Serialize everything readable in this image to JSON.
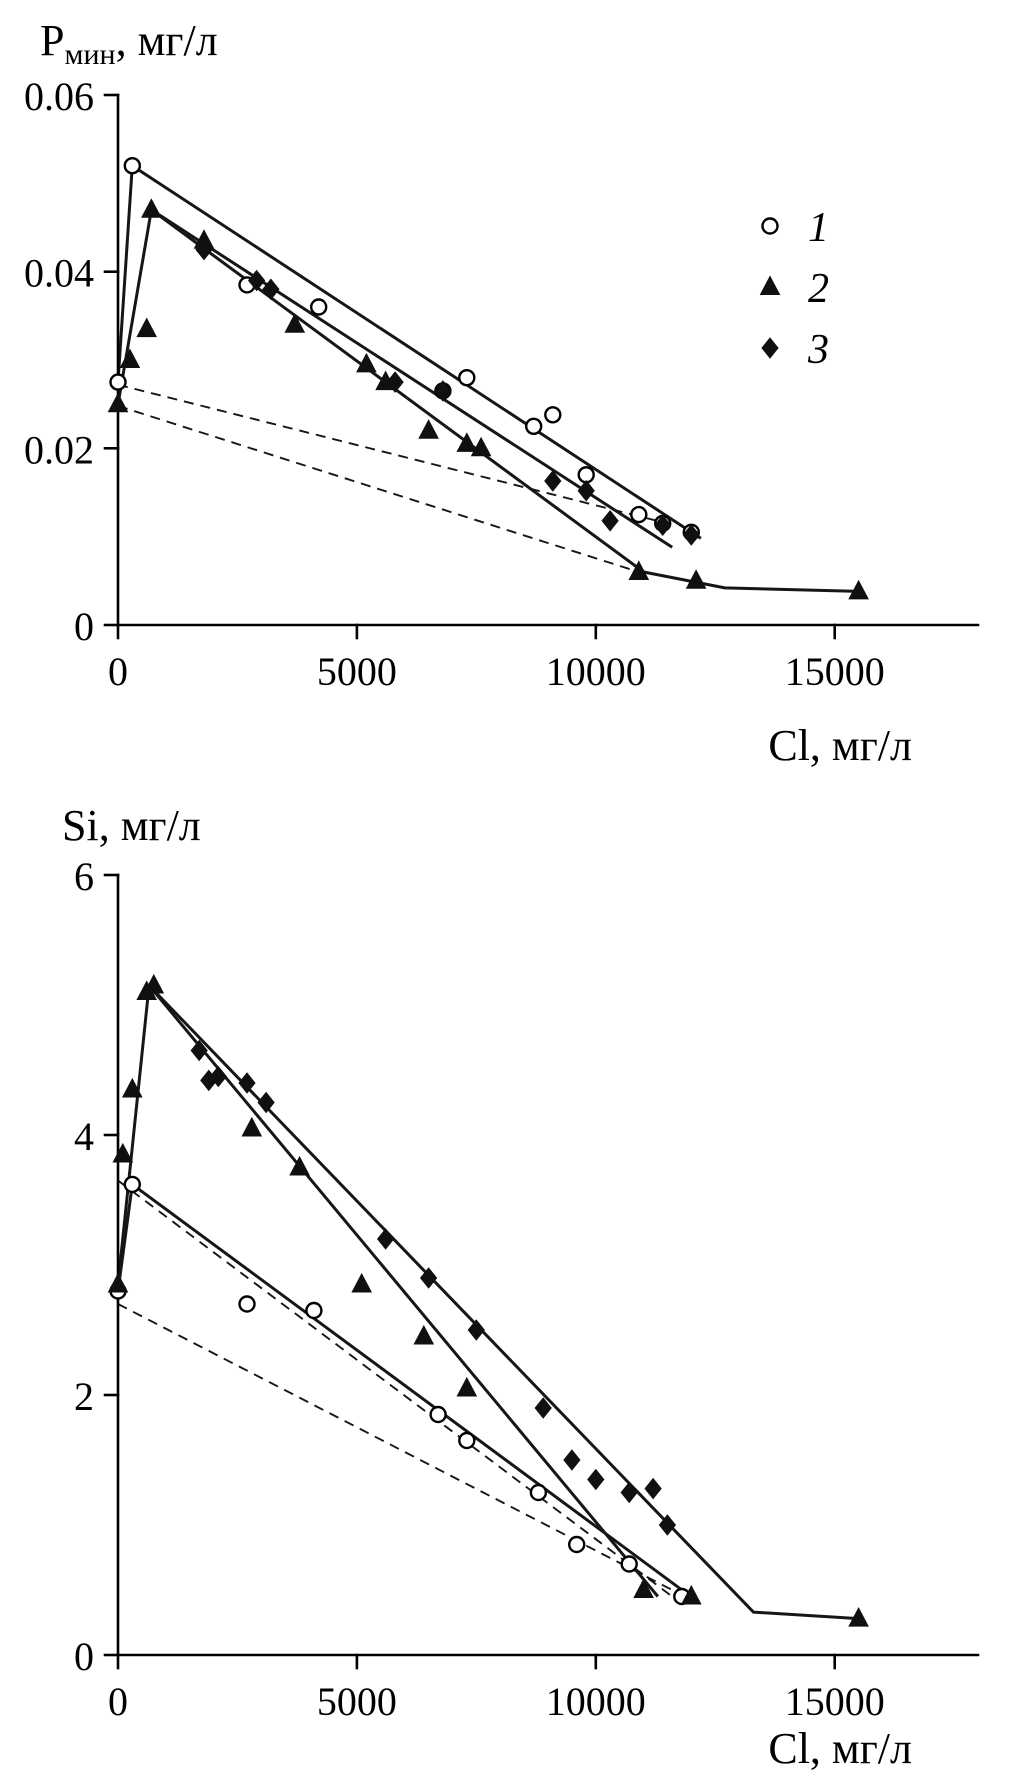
{
  "figure": {
    "background": "#ffffff",
    "axis_color": "#000000",
    "line_color": "#161616"
  },
  "legend": {
    "position": "upper right",
    "items": [
      {
        "label": "1",
        "marker": "circle"
      },
      {
        "label": "2",
        "marker": "triangle"
      },
      {
        "label": "3",
        "marker": "diamond"
      }
    ]
  },
  "chart_data": [
    {
      "type": "scatter",
      "title": "",
      "ylabel": "Рмин, мг/л",
      "ylabel_main": "Р",
      "ylabel_sub": "мин",
      "ylabel_rest": ", мг/л",
      "xlabel": "Cl, мг/л",
      "xlim": [
        0,
        18000
      ],
      "ylim": [
        0,
        0.06
      ],
      "grid": false,
      "xticks": [
        {
          "v": 0,
          "label": "0"
        },
        {
          "v": 5000,
          "label": "5000"
        },
        {
          "v": 10000,
          "label": "10000"
        },
        {
          "v": 15000,
          "label": "15000"
        }
      ],
      "yticks": [
        {
          "v": 0,
          "label": "0"
        },
        {
          "v": 0.02,
          "label": "0.02"
        },
        {
          "v": 0.04,
          "label": "0.04"
        },
        {
          "v": 0.06,
          "label": "0.06"
        }
      ],
      "series": [
        {
          "name": "1",
          "marker": "circle",
          "points": [
            [
              0,
              0.0275
            ],
            [
              300,
              0.052
            ],
            [
              2700,
              0.0385
            ],
            [
              4200,
              0.036
            ],
            [
              6800,
              0.0265
            ],
            [
              7300,
              0.028
            ],
            [
              8700,
              0.0225
            ],
            [
              9100,
              0.0238
            ],
            [
              9800,
              0.017
            ],
            [
              10900,
              0.0125
            ],
            [
              11400,
              0.0115
            ],
            [
              12000,
              0.0105
            ]
          ]
        },
        {
          "name": "2",
          "marker": "triangle",
          "points": [
            [
              0,
              0.025
            ],
            [
              250,
              0.03
            ],
            [
              600,
              0.0335
            ],
            [
              700,
              0.047
            ],
            [
              1800,
              0.0435
            ],
            [
              3700,
              0.034
            ],
            [
              5200,
              0.0295
            ],
            [
              5600,
              0.0275
            ],
            [
              6500,
              0.022
            ],
            [
              7300,
              0.0205
            ],
            [
              7600,
              0.02
            ],
            [
              10900,
              0.006
            ],
            [
              12100,
              0.005
            ],
            [
              15500,
              0.0038
            ]
          ]
        },
        {
          "name": "3",
          "marker": "diamond",
          "points": [
            [
              1800,
              0.0425
            ],
            [
              2900,
              0.039
            ],
            [
              3200,
              0.038
            ],
            [
              5800,
              0.0275
            ],
            [
              6800,
              0.0265
            ],
            [
              9100,
              0.0163
            ],
            [
              9800,
              0.0152
            ],
            [
              10300,
              0.0118
            ],
            [
              11400,
              0.0113
            ],
            [
              12000,
              0.0102
            ]
          ]
        }
      ],
      "lines": [
        {
          "style": "solid",
          "points": [
            [
              0,
              0.0275
            ],
            [
              300,
              0.052
            ],
            [
              12200,
              0.0098
            ]
          ]
        },
        {
          "style": "solid",
          "points": [
            [
              700,
              0.047
            ],
            [
              11600,
              0.0088
            ]
          ]
        },
        {
          "style": "solid",
          "points": [
            [
              0,
              0.025
            ],
            [
              700,
              0.047
            ],
            [
              11000,
              0.006
            ],
            [
              12700,
              0.0042
            ],
            [
              15500,
              0.0038
            ]
          ]
        },
        {
          "style": "dashed",
          "points": [
            [
              0,
              0.0272
            ],
            [
              11500,
              0.0115
            ]
          ]
        },
        {
          "style": "dashed",
          "points": [
            [
              0,
              0.0248
            ],
            [
              10900,
              0.006
            ]
          ]
        }
      ]
    },
    {
      "type": "scatter",
      "title": "",
      "ylabel": "Si, мг/л",
      "ylabel_main": "Si",
      "ylabel_sub": "",
      "ylabel_rest": ", мг/л",
      "xlabel": "Cl, мг/л",
      "xlim": [
        0,
        18000
      ],
      "ylim": [
        0,
        6
      ],
      "grid": false,
      "xticks": [
        {
          "v": 0,
          "label": "0"
        },
        {
          "v": 5000,
          "label": "5000"
        },
        {
          "v": 10000,
          "label": "10000"
        },
        {
          "v": 15000,
          "label": "15000"
        }
      ],
      "yticks": [
        {
          "v": 0,
          "label": "0"
        },
        {
          "v": 2,
          "label": "2"
        },
        {
          "v": 4,
          "label": "4"
        },
        {
          "v": 6,
          "label": "6"
        }
      ],
      "series": [
        {
          "name": "1",
          "marker": "circle",
          "points": [
            [
              0,
              2.8
            ],
            [
              300,
              3.62
            ],
            [
              2700,
              2.7
            ],
            [
              4100,
              2.65
            ],
            [
              6700,
              1.85
            ],
            [
              7300,
              1.65
            ],
            [
              8800,
              1.25
            ],
            [
              9600,
              0.85
            ],
            [
              10700,
              0.7
            ],
            [
              11800,
              0.45
            ]
          ]
        },
        {
          "name": "2",
          "marker": "triangle",
          "points": [
            [
              0,
              2.85
            ],
            [
              100,
              3.85
            ],
            [
              300,
              4.35
            ],
            [
              600,
              5.1
            ],
            [
              750,
              5.15
            ],
            [
              2800,
              4.05
            ],
            [
              3800,
              3.75
            ],
            [
              5100,
              2.85
            ],
            [
              6400,
              2.45
            ],
            [
              7300,
              2.05
            ],
            [
              11000,
              0.5
            ],
            [
              12000,
              0.45
            ],
            [
              15500,
              0.28
            ]
          ]
        },
        {
          "name": "3",
          "marker": "diamond",
          "points": [
            [
              1700,
              4.65
            ],
            [
              1900,
              4.42
            ],
            [
              2100,
              4.45
            ],
            [
              2700,
              4.4
            ],
            [
              3100,
              4.25
            ],
            [
              5600,
              3.2
            ],
            [
              6500,
              2.9
            ],
            [
              7500,
              2.5
            ],
            [
              8900,
              1.9
            ],
            [
              9500,
              1.5
            ],
            [
              10000,
              1.35
            ],
            [
              10700,
              1.25
            ],
            [
              11200,
              1.28
            ],
            [
              11500,
              1.0
            ]
          ]
        }
      ],
      "lines": [
        {
          "style": "solid",
          "points": [
            [
              0,
              2.8
            ],
            [
              300,
              3.62
            ],
            [
              12100,
              0.42
            ]
          ]
        },
        {
          "style": "solid",
          "points": [
            [
              0,
              2.85
            ],
            [
              650,
              5.15
            ],
            [
              13300,
              0.33
            ],
            [
              15500,
              0.28
            ]
          ]
        },
        {
          "style": "solid",
          "points": [
            [
              650,
              5.15
            ],
            [
              11300,
              0.45
            ]
          ]
        },
        {
          "style": "dashed",
          "points": [
            [
              0,
              3.65
            ],
            [
              11600,
              0.45
            ]
          ]
        },
        {
          "style": "dashed",
          "points": [
            [
              0,
              2.7
            ],
            [
              11600,
              0.5
            ]
          ]
        }
      ]
    }
  ]
}
